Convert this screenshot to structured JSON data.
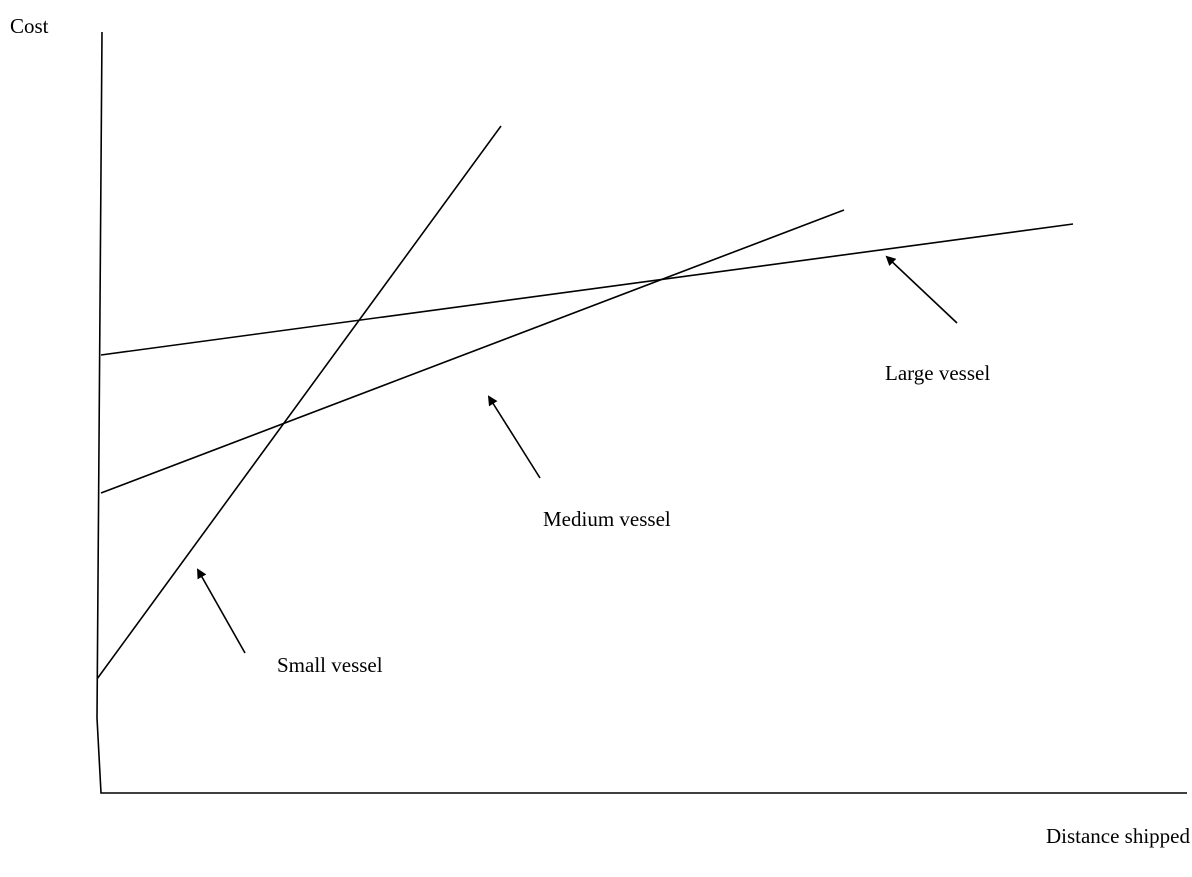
{
  "axes": {
    "y_label": "Cost",
    "x_label": "Distance shipped"
  },
  "lines": [
    {
      "label": "Small vessel"
    },
    {
      "label": "Medium vessel"
    },
    {
      "label": "Large vessel"
    }
  ]
}
